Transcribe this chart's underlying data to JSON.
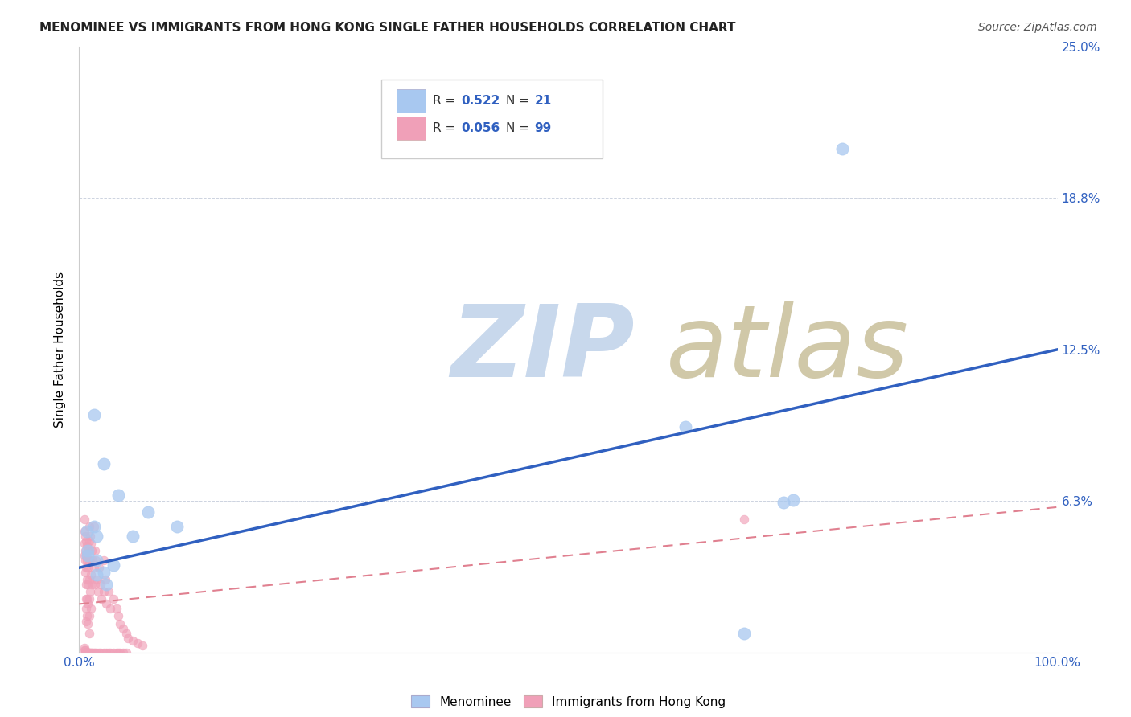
{
  "title": "MENOMINEE VS IMMIGRANTS FROM HONG KONG SINGLE FATHER HOUSEHOLDS CORRELATION CHART",
  "source": "Source: ZipAtlas.com",
  "ylabel": "Single Father Households",
  "xlim": [
    0,
    1.0
  ],
  "ylim": [
    0,
    0.25
  ],
  "yticks": [
    0.0,
    0.0625,
    0.125,
    0.1875,
    0.25
  ],
  "ytick_labels": [
    "",
    "6.3%",
    "12.5%",
    "18.8%",
    "25.0%"
  ],
  "xticks": [
    0.0,
    0.5,
    1.0
  ],
  "xtick_labels": [
    "0.0%",
    "",
    "100.0%"
  ],
  "watermark_zip": "ZIP",
  "watermark_atlas": "atlas",
  "legend_r1": "R = 0.522",
  "legend_n1": "N = 21",
  "legend_r2": "R = 0.056",
  "legend_n2": "N = 99",
  "blue_scatter_x": [
    0.015,
    0.025,
    0.04,
    0.07,
    0.1,
    0.015,
    0.008,
    0.009,
    0.018,
    0.035,
    0.62,
    0.68,
    0.018,
    0.025,
    0.78,
    0.73,
    0.009,
    0.018,
    0.028,
    0.055,
    0.72
  ],
  "blue_scatter_y": [
    0.098,
    0.078,
    0.065,
    0.058,
    0.052,
    0.052,
    0.05,
    0.042,
    0.038,
    0.036,
    0.093,
    0.008,
    0.048,
    0.033,
    0.208,
    0.063,
    0.04,
    0.032,
    0.028,
    0.048,
    0.062
  ],
  "pink_scatter_x": [
    0.005,
    0.005,
    0.005,
    0.005,
    0.006,
    0.006,
    0.006,
    0.006,
    0.007,
    0.007,
    0.007,
    0.007,
    0.007,
    0.007,
    0.007,
    0.008,
    0.008,
    0.008,
    0.008,
    0.008,
    0.009,
    0.009,
    0.009,
    0.009,
    0.009,
    0.01,
    0.01,
    0.01,
    0.01,
    0.01,
    0.01,
    0.01,
    0.011,
    0.011,
    0.011,
    0.012,
    0.012,
    0.012,
    0.013,
    0.013,
    0.014,
    0.015,
    0.015,
    0.016,
    0.016,
    0.017,
    0.018,
    0.019,
    0.02,
    0.022,
    0.023,
    0.025,
    0.025,
    0.027,
    0.028,
    0.03,
    0.032,
    0.035,
    0.038,
    0.04,
    0.042,
    0.045,
    0.048,
    0.05,
    0.055,
    0.06,
    0.065,
    0.005,
    0.005,
    0.006,
    0.006,
    0.007,
    0.007,
    0.008,
    0.008,
    0.009,
    0.009,
    0.01,
    0.01,
    0.011,
    0.012,
    0.013,
    0.014,
    0.015,
    0.016,
    0.018,
    0.02,
    0.022,
    0.025,
    0.028,
    0.03,
    0.032,
    0.035,
    0.038,
    0.04,
    0.042,
    0.045,
    0.048,
    0.68
  ],
  "pink_scatter_y": [
    0.055,
    0.05,
    0.045,
    0.04,
    0.048,
    0.042,
    0.038,
    0.033,
    0.046,
    0.04,
    0.035,
    0.028,
    0.022,
    0.018,
    0.013,
    0.044,
    0.038,
    0.03,
    0.022,
    0.015,
    0.042,
    0.035,
    0.028,
    0.02,
    0.012,
    0.052,
    0.046,
    0.038,
    0.03,
    0.022,
    0.015,
    0.008,
    0.048,
    0.038,
    0.025,
    0.045,
    0.032,
    0.018,
    0.042,
    0.028,
    0.038,
    0.052,
    0.035,
    0.042,
    0.028,
    0.038,
    0.03,
    0.025,
    0.035,
    0.028,
    0.022,
    0.038,
    0.025,
    0.03,
    0.02,
    0.025,
    0.018,
    0.022,
    0.018,
    0.015,
    0.012,
    0.01,
    0.008,
    0.006,
    0.005,
    0.004,
    0.003,
    0.002,
    0.001,
    0.001,
    0.0,
    0.0,
    0.0,
    0.0,
    0.0,
    0.0,
    0.0,
    0.0,
    0.0,
    0.0,
    0.0,
    0.0,
    0.0,
    0.0,
    0.0,
    0.0,
    0.0,
    0.0,
    0.0,
    0.0,
    0.0,
    0.0,
    0.0,
    0.0,
    0.0,
    0.0,
    0.0,
    0.0,
    0.055
  ],
  "blue_line_x": [
    0.0,
    1.0
  ],
  "blue_line_y": [
    0.035,
    0.125
  ],
  "pink_line_x": [
    0.0,
    1.0
  ],
  "pink_line_y": [
    0.02,
    0.06
  ],
  "blue_scatter_color": "#A8C8F0",
  "pink_scatter_color": "#F0A0B8",
  "blue_line_color": "#3060C0",
  "pink_line_color": "#E08090",
  "grid_color": "#C0C8D8",
  "watermark_zip_color": "#C8D8EC",
  "watermark_atlas_color": "#D0C8A8",
  "background_color": "#FFFFFF",
  "title_fontsize": 11,
  "source_fontsize": 10,
  "ylabel_fontsize": 11,
  "blue_scatter_size": 120,
  "pink_scatter_size": 60,
  "legend_patch_blue": "#A8C8F0",
  "legend_patch_pink": "#F0A0B8",
  "legend_text_color": "#3060C0",
  "legend_label_color": "#333333"
}
